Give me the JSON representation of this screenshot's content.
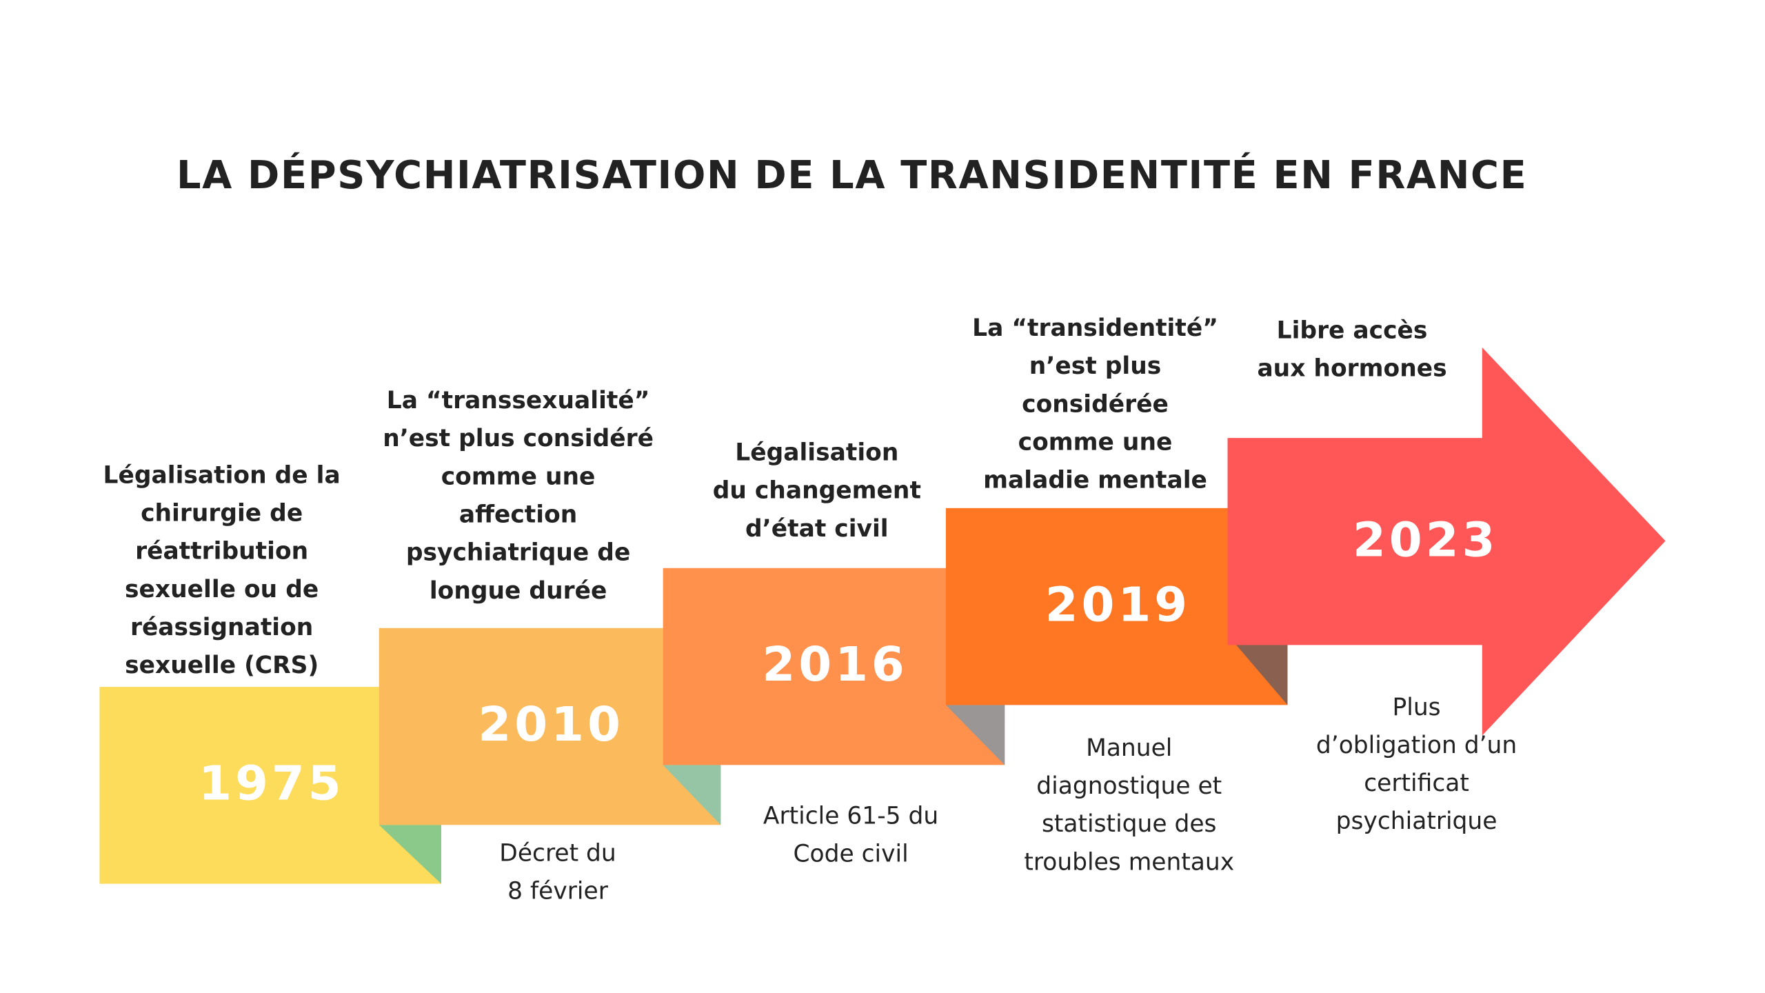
{
  "title": "LA DÉPSYCHIATRISATION DE LA TRANSIDENTITÉ EN FRANCE",
  "steps": [
    {
      "year": "1975",
      "event": [
        "Légalisation de la",
        "chirurgie de",
        "réattribution",
        "sexuelle ou de",
        "réassignation",
        "sexuelle (CRS)"
      ],
      "source": []
    },
    {
      "year": "2010",
      "event": [
        "La “transsexualité”",
        "n’est plus considéré",
        "comme une",
        "affection",
        "psychiatrique de",
        "longue durée"
      ],
      "source": [
        "Décret du",
        "8 février"
      ]
    },
    {
      "year": "2016",
      "event": [
        "Légalisation",
        "du changement",
        "d’état civil"
      ],
      "source": [
        "Article 61-5 du",
        "Code civil"
      ]
    },
    {
      "year": "2019",
      "event": [
        "La “transidentité”",
        "n’est plus",
        "considérée",
        "comme une",
        "maladie mentale"
      ],
      "source": [
        "Manuel",
        "diagnostique et",
        "statistique des",
        "troubles mentaux"
      ]
    },
    {
      "year": "2023",
      "event": [
        "Libre accès",
        "aux hormones"
      ],
      "source": [
        "Plus",
        "d’obligation d’un",
        "certificat",
        "psychiatrique"
      ]
    }
  ]
}
